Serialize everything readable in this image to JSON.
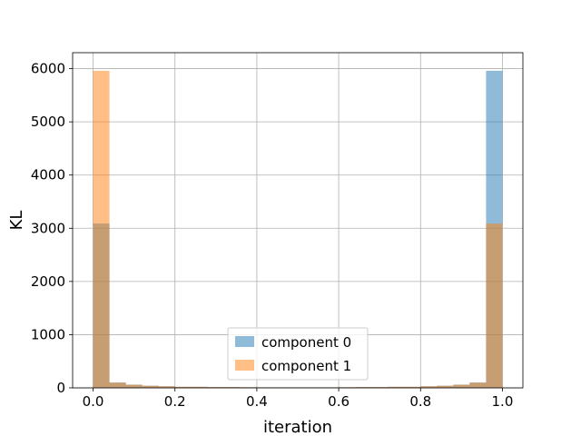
{
  "chart_data": {
    "type": "bar",
    "title": "",
    "xlabel": "iteration",
    "ylabel": "KL",
    "xlim": [
      -0.05,
      1.05
    ],
    "ylim": [
      0,
      6300
    ],
    "grid": true,
    "legend_placement": "lower-center",
    "bin_edges": [
      0.0,
      0.04,
      0.08,
      0.12,
      0.16,
      0.2,
      0.24,
      0.28,
      0.32,
      0.36,
      0.4,
      0.44,
      0.48,
      0.52,
      0.56,
      0.6,
      0.64,
      0.68,
      0.72,
      0.76,
      0.8,
      0.84,
      0.88,
      0.92,
      0.96,
      1.0
    ],
    "overlap_color": "#c69c76",
    "series": [
      {
        "name": "component 0",
        "color": "#1f77b4",
        "alpha": 0.5,
        "values": [
          3090,
          100,
          60,
          40,
          30,
          20,
          20,
          15,
          15,
          12,
          10,
          10,
          10,
          10,
          10,
          12,
          15,
          15,
          20,
          20,
          30,
          40,
          60,
          100,
          5960
        ]
      },
      {
        "name": "component 1",
        "color": "#ff7f0e",
        "alpha": 0.5,
        "values": [
          5960,
          100,
          60,
          40,
          30,
          20,
          20,
          15,
          15,
          12,
          10,
          10,
          10,
          10,
          10,
          12,
          15,
          15,
          20,
          20,
          30,
          40,
          60,
          100,
          3090
        ]
      }
    ],
    "x_ticks": [
      {
        "value": 0.0,
        "label": "0.0"
      },
      {
        "value": 0.2,
        "label": "0.2"
      },
      {
        "value": 0.4,
        "label": "0.4"
      },
      {
        "value": 0.6,
        "label": "0.6"
      },
      {
        "value": 0.8,
        "label": "0.8"
      },
      {
        "value": 1.0,
        "label": "1.0"
      }
    ],
    "y_ticks": [
      {
        "value": 0,
        "label": "0"
      },
      {
        "value": 1000,
        "label": "1000"
      },
      {
        "value": 2000,
        "label": "2000"
      },
      {
        "value": 3000,
        "label": "3000"
      },
      {
        "value": 4000,
        "label": "4000"
      },
      {
        "value": 5000,
        "label": "5000"
      },
      {
        "value": 6000,
        "label": "6000"
      }
    ]
  }
}
